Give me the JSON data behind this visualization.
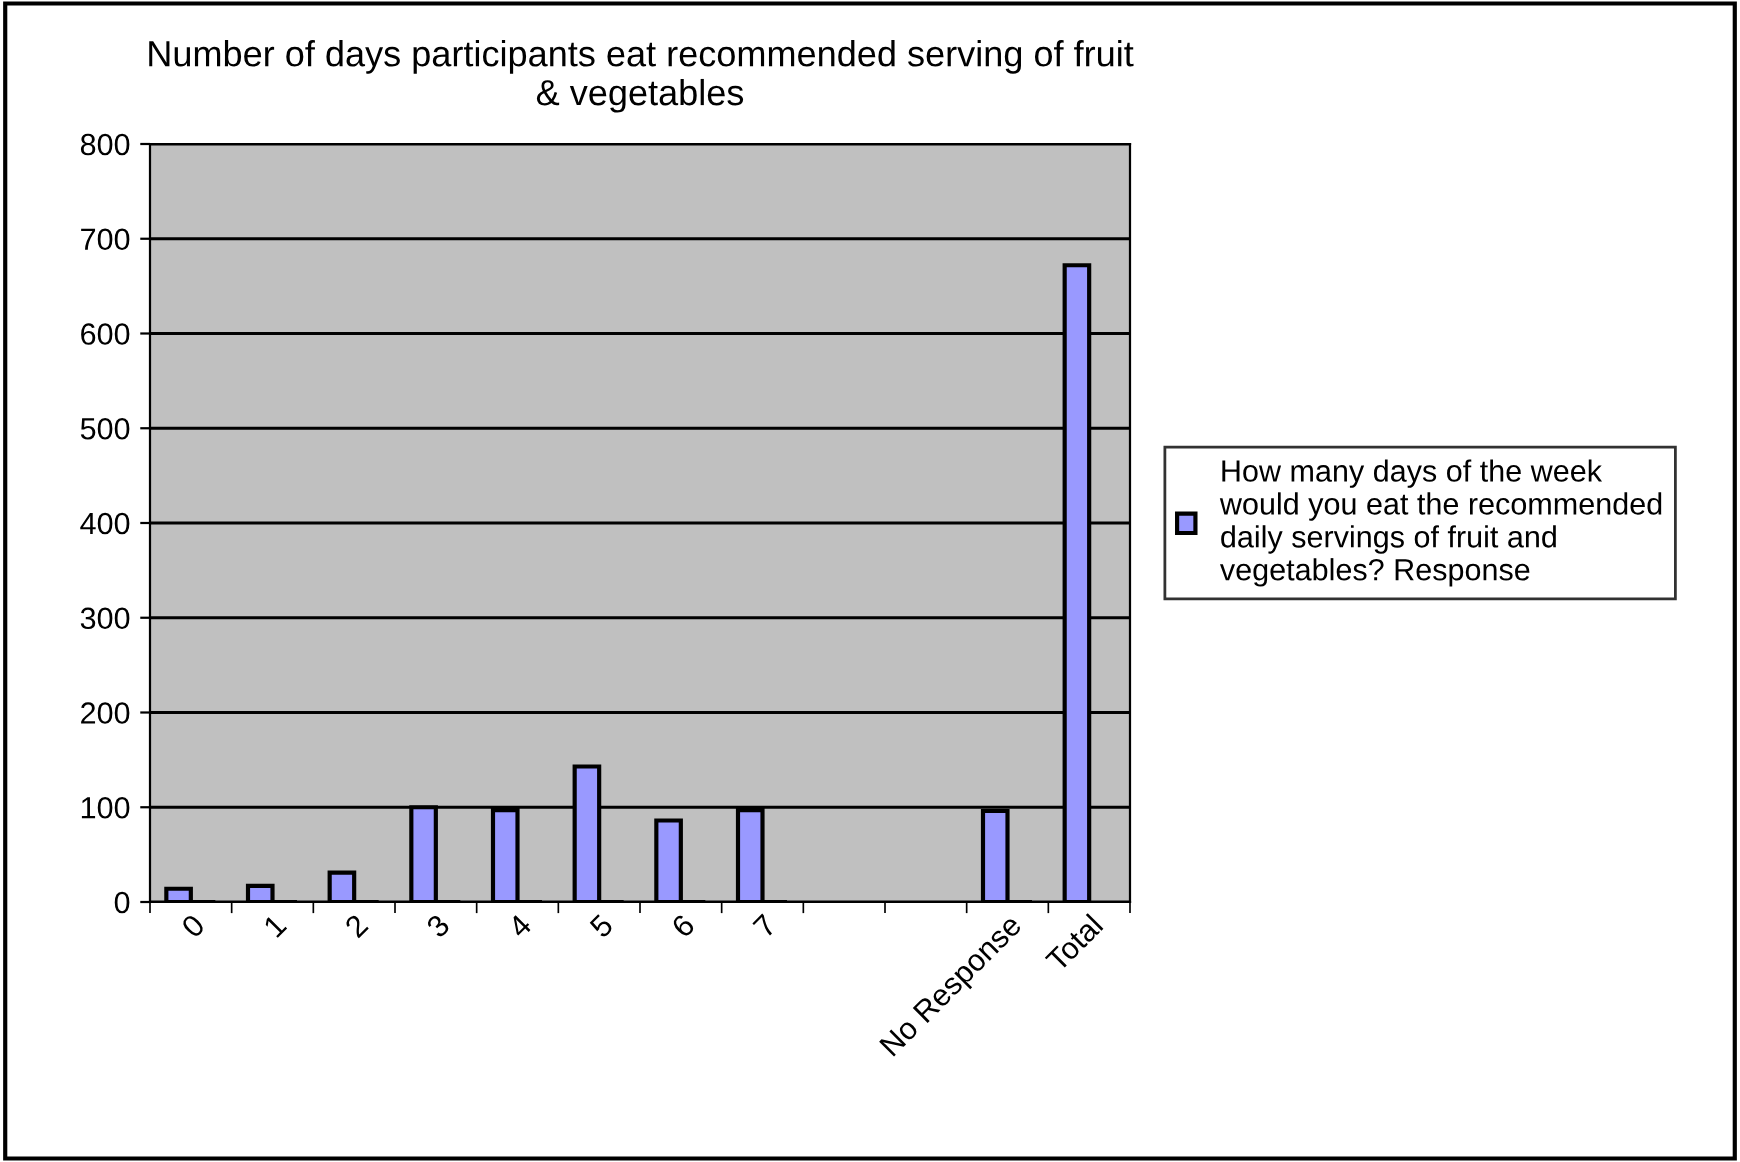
{
  "chart_data": {
    "type": "bar",
    "title": "Number of days participants eat recommended serving of fruit\n& vegetables",
    "categories": [
      "0",
      "1",
      "2",
      "3",
      "4",
      "5",
      "6",
      "7",
      null,
      null,
      "No Response",
      "Total"
    ],
    "series": [
      {
        "name": "How many days of the week would you eat the recommended daily servings of fruit and vegetables? Response",
        "color": "#9999ff",
        "values": [
          14,
          17,
          31,
          100,
          97,
          143,
          86,
          97,
          null,
          null,
          96,
          672
        ]
      },
      {
        "color": "#000000",
        "values": [
          0,
          0,
          0,
          0,
          0,
          0,
          0,
          0,
          null,
          null,
          0,
          null
        ]
      }
    ],
    "ylim": [
      0,
      800
    ],
    "yticks": [
      0,
      100,
      200,
      300,
      400,
      500,
      600,
      700,
      800
    ],
    "grid": "y",
    "legend": "right"
  }
}
